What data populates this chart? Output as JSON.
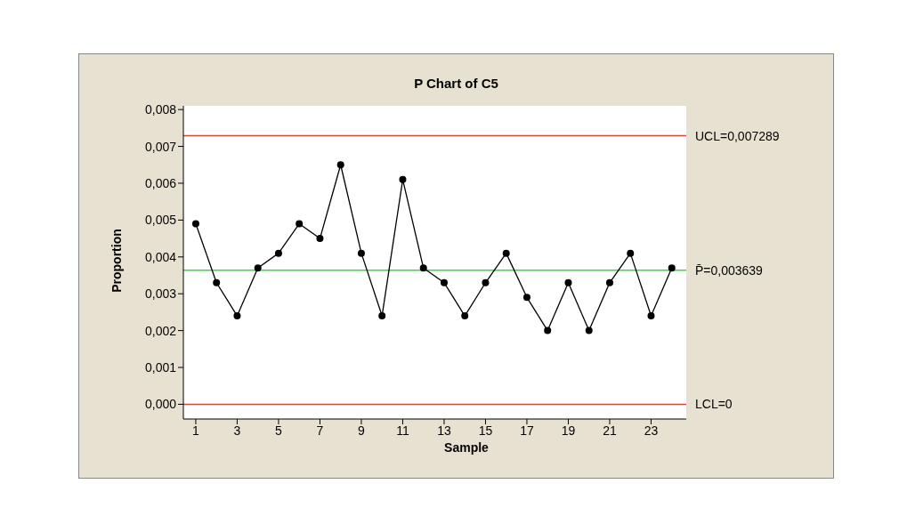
{
  "chart_data": {
    "type": "line",
    "title": "P Chart of C5",
    "xlabel": "Sample",
    "ylabel": "Proportion",
    "x": [
      1,
      2,
      3,
      4,
      5,
      6,
      7,
      8,
      9,
      10,
      11,
      12,
      13,
      14,
      15,
      16,
      17,
      18,
      19,
      20,
      21,
      22,
      23,
      24
    ],
    "series": [
      {
        "color": "#000000",
        "values": [
          0.0049,
          0.0033,
          0.0024,
          0.0037,
          0.0041,
          0.0049,
          0.0045,
          0.0065,
          0.0041,
          0.0024,
          0.0061,
          0.0037,
          0.0033,
          0.0024,
          0.0033,
          0.0041,
          0.0029,
          0.002,
          0.0033,
          0.002,
          0.0033,
          0.0041,
          0.0024,
          0.0037
        ]
      }
    ],
    "xlim": [
      0.4,
      24.7
    ],
    "xticks": [
      1,
      3,
      5,
      7,
      9,
      11,
      13,
      15,
      17,
      19,
      21,
      23
    ],
    "ylim": [
      -0.0004,
      0.0081
    ],
    "yticks": [
      {
        "value": 0,
        "label": "0,000"
      },
      {
        "value": 0.001,
        "label": "0,001"
      },
      {
        "value": 0.002,
        "label": "0,002"
      },
      {
        "value": 0.003,
        "label": "0,003"
      },
      {
        "value": 0.004,
        "label": "0,004"
      },
      {
        "value": 0.005,
        "label": "0,005"
      },
      {
        "value": 0.006,
        "label": "0,006"
      },
      {
        "value": 0.007,
        "label": "0,007"
      },
      {
        "value": 0.008,
        "label": "0,008"
      }
    ],
    "ref_lines": [
      {
        "axis": "y",
        "value": 0.007289,
        "label": "UCL=0,007289",
        "color": "#d04a3a"
      },
      {
        "axis": "y",
        "value": 0.003639,
        "label": "P̄=0,003639",
        "color": "#33dd33"
      },
      {
        "axis": "y",
        "value": 0,
        "label": "LCL=0",
        "color": "#d04a3a"
      }
    ],
    "marker": "circle",
    "grid": false
  }
}
